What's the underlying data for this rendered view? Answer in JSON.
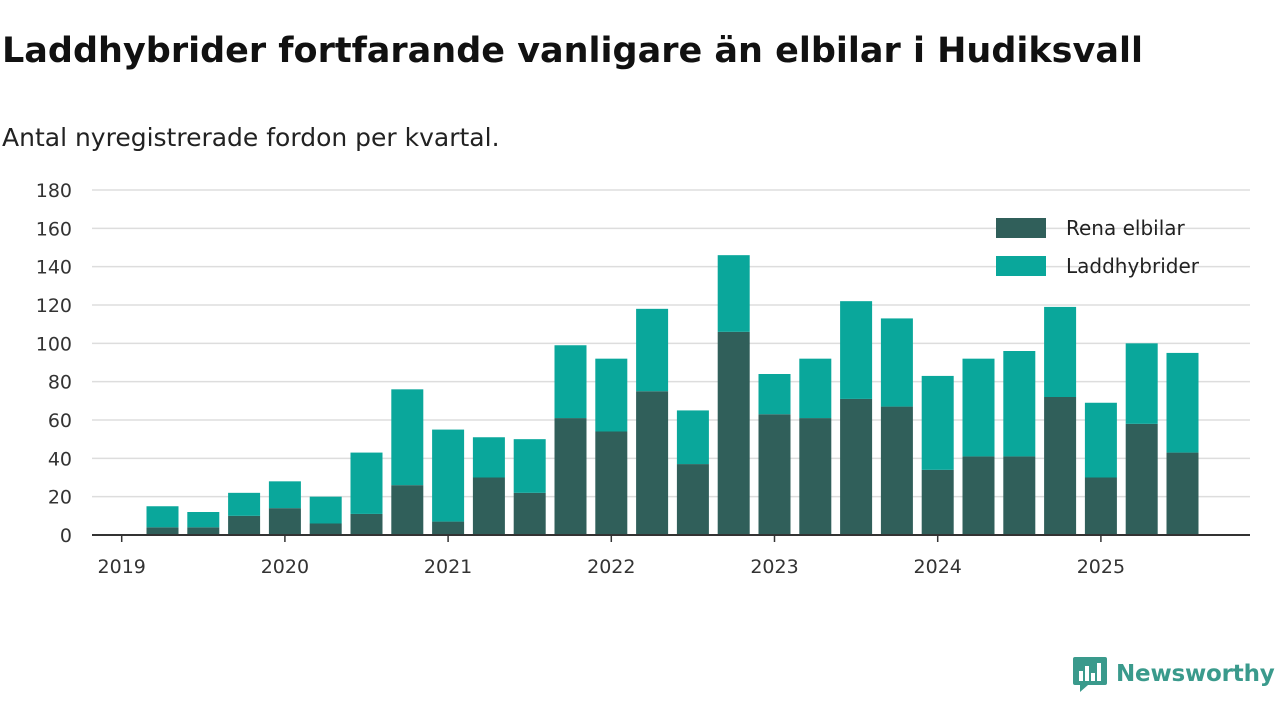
{
  "title": "Laddhybrider fortfarande vanligare än elbilar i Hudiksvall",
  "subtitle": "Antal nyregistrerade fordon per kvartal.",
  "brand": {
    "name": "Newsworthy",
    "icon": "newsworthy-logo-icon"
  },
  "colors": {
    "elbilar": "#305f5a",
    "laddhybrider": "#0aa79b",
    "grid": "#dddddd",
    "axis": "#333333"
  },
  "chart_data": {
    "type": "bar",
    "stacked": true,
    "title": "Laddhybrider fortfarande vanligare än elbilar i Hudiksvall",
    "subtitle": "Antal nyregistrerade fordon per kvartal.",
    "xlabel": "",
    "ylabel": "",
    "ylim": [
      0,
      180
    ],
    "yticks": [
      0,
      20,
      40,
      60,
      80,
      100,
      120,
      140,
      160,
      180
    ],
    "xticks": [
      "2019",
      "2020",
      "2021",
      "2022",
      "2023",
      "2024",
      "2025"
    ],
    "grid": true,
    "legend_position": "top-right",
    "categories": [
      "2019 Q2",
      "2019 Q3",
      "2019 Q4",
      "2020 Q1",
      "2020 Q2",
      "2020 Q3",
      "2020 Q4",
      "2021 Q1",
      "2021 Q2",
      "2021 Q3",
      "2021 Q4",
      "2022 Q1",
      "2022 Q2",
      "2022 Q3",
      "2022 Q4",
      "2023 Q1",
      "2023 Q2",
      "2023 Q3",
      "2023 Q4",
      "2024 Q1",
      "2024 Q2",
      "2024 Q3",
      "2024 Q4",
      "2025 Q1",
      "2025 Q2",
      "2025 Q3"
    ],
    "series": [
      {
        "name": "Rena elbilar",
        "color": "#305f5a",
        "values": [
          4,
          4,
          10,
          14,
          6,
          11,
          26,
          7,
          30,
          22,
          61,
          54,
          75,
          37,
          106,
          63,
          61,
          71,
          67,
          34,
          41,
          41,
          72,
          30,
          58,
          43
        ]
      },
      {
        "name": "Laddhybrider",
        "color": "#0aa79b",
        "values": [
          11,
          8,
          12,
          14,
          14,
          32,
          50,
          48,
          21,
          28,
          38,
          38,
          43,
          28,
          40,
          21,
          31,
          51,
          46,
          49,
          51,
          55,
          47,
          39,
          42,
          52
        ]
      }
    ]
  }
}
